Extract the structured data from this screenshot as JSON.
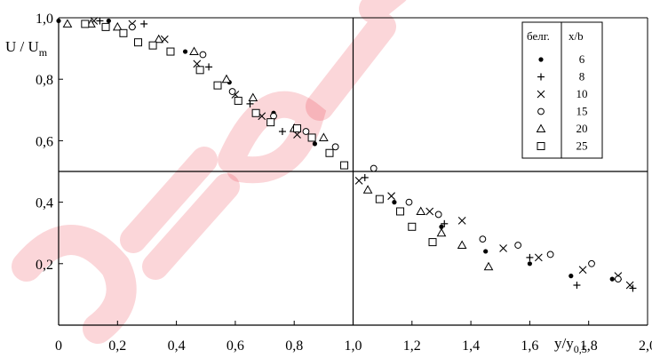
{
  "chart_data": {
    "type": "scatter",
    "title": "",
    "ylabel": "U / U",
    "ylabel_sub": "m",
    "xlabel": "y/y",
    "xlabel_sub": "0,5",
    "xlim": [
      0,
      2.0
    ],
    "ylim": [
      0.1,
      1.0
    ],
    "x_ticks": [
      "0",
      "0,2",
      "0,4",
      "0,6",
      "0,8",
      "1,0",
      "1,2",
      "1,4",
      "1,6",
      "1,8",
      "2,0"
    ],
    "y_ticks": [
      "0,2",
      "0,4",
      "0,6",
      "0,8",
      "1,0"
    ],
    "grid": false,
    "reference_lines": {
      "x": 1.0,
      "y": 0.5
    },
    "legend": {
      "placement": "top-right",
      "header_marker": "белг.",
      "header_value": "x/b"
    },
    "series": [
      {
        "name": "6",
        "marker": "dot",
        "points": [
          [
            0.0,
            0.99
          ],
          [
            0.17,
            0.99
          ],
          [
            0.43,
            0.89
          ],
          [
            0.58,
            0.79
          ],
          [
            0.73,
            0.69
          ],
          [
            0.87,
            0.59
          ],
          [
            1.14,
            0.4
          ],
          [
            1.3,
            0.32
          ],
          [
            1.45,
            0.24
          ],
          [
            1.6,
            0.2
          ],
          [
            1.74,
            0.16
          ],
          [
            1.88,
            0.15
          ]
        ]
      },
      {
        "name": "8",
        "marker": "plus",
        "points": [
          [
            0.14,
            0.99
          ],
          [
            0.29,
            0.98
          ],
          [
            0.51,
            0.84
          ],
          [
            0.65,
            0.72
          ],
          [
            0.76,
            0.63
          ],
          [
            1.04,
            0.48
          ],
          [
            1.31,
            0.33
          ],
          [
            1.6,
            0.22
          ],
          [
            1.76,
            0.13
          ],
          [
            1.95,
            0.12
          ]
        ]
      },
      {
        "name": "10",
        "marker": "cross",
        "points": [
          [
            0.12,
            0.99
          ],
          [
            0.25,
            0.98
          ],
          [
            0.36,
            0.93
          ],
          [
            0.47,
            0.85
          ],
          [
            0.6,
            0.75
          ],
          [
            0.69,
            0.68
          ],
          [
            0.81,
            0.62
          ],
          [
            1.02,
            0.47
          ],
          [
            1.13,
            0.42
          ],
          [
            1.26,
            0.37
          ],
          [
            1.37,
            0.34
          ],
          [
            1.51,
            0.25
          ],
          [
            1.63,
            0.22
          ],
          [
            1.78,
            0.18
          ],
          [
            1.9,
            0.16
          ],
          [
            1.94,
            0.13
          ]
        ]
      },
      {
        "name": "15",
        "marker": "circle",
        "points": [
          [
            0.25,
            0.97
          ],
          [
            0.49,
            0.88
          ],
          [
            0.59,
            0.76
          ],
          [
            0.73,
            0.68
          ],
          [
            0.84,
            0.63
          ],
          [
            0.94,
            0.58
          ],
          [
            1.07,
            0.51
          ],
          [
            1.19,
            0.4
          ],
          [
            1.29,
            0.36
          ],
          [
            1.44,
            0.28
          ],
          [
            1.56,
            0.26
          ],
          [
            1.67,
            0.23
          ],
          [
            1.81,
            0.2
          ],
          [
            1.9,
            0.15
          ]
        ]
      },
      {
        "name": "20",
        "marker": "triangle",
        "points": [
          [
            0.03,
            0.98
          ],
          [
            0.11,
            0.98
          ],
          [
            0.2,
            0.97
          ],
          [
            0.34,
            0.93
          ],
          [
            0.46,
            0.89
          ],
          [
            0.57,
            0.8
          ],
          [
            0.66,
            0.74
          ],
          [
            0.8,
            0.64
          ],
          [
            0.9,
            0.61
          ],
          [
            1.05,
            0.44
          ],
          [
            1.23,
            0.37
          ],
          [
            1.3,
            0.3
          ],
          [
            1.37,
            0.26
          ],
          [
            1.46,
            0.19
          ]
        ]
      },
      {
        "name": "25",
        "marker": "square",
        "points": [
          [
            0.09,
            0.98
          ],
          [
            0.16,
            0.97
          ],
          [
            0.22,
            0.95
          ],
          [
            0.27,
            0.92
          ],
          [
            0.32,
            0.91
          ],
          [
            0.38,
            0.89
          ],
          [
            0.48,
            0.83
          ],
          [
            0.54,
            0.78
          ],
          [
            0.61,
            0.73
          ],
          [
            0.67,
            0.69
          ],
          [
            0.72,
            0.66
          ],
          [
            0.81,
            0.64
          ],
          [
            0.86,
            0.61
          ],
          [
            0.92,
            0.56
          ],
          [
            0.97,
            0.52
          ],
          [
            1.09,
            0.41
          ],
          [
            1.16,
            0.37
          ],
          [
            1.2,
            0.32
          ],
          [
            1.27,
            0.27
          ]
        ]
      }
    ],
    "watermark_color": "#e8192c"
  }
}
